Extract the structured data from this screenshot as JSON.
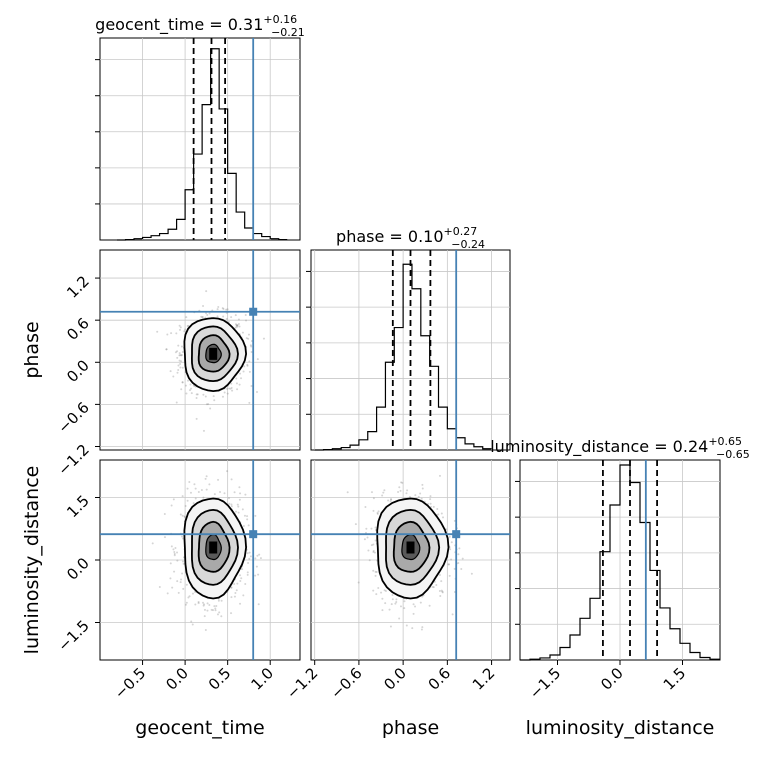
{
  "chart_data": {
    "type": "corner",
    "parameters": [
      "geocent_time",
      "phase",
      "luminosity_distance"
    ],
    "truth": {
      "color": "#4682b4",
      "values": [
        0.8,
        0.72,
        0.62
      ]
    },
    "panels": [
      {
        "kind": "hist",
        "param": "geocent_time",
        "xlim": [
          -1.0,
          1.35
        ],
        "title": {
          "main": "geocent_time = 0.31",
          "plus": "+0.16",
          "minus": "−0.21"
        },
        "edges": [
          -0.8,
          -0.7,
          -0.6,
          -0.5,
          -0.4,
          -0.3,
          -0.2,
          -0.1,
          0.0,
          0.1,
          0.2,
          0.3,
          0.4,
          0.5,
          0.6,
          0.7,
          0.8,
          0.9,
          1.0,
          1.1,
          1.2
        ],
        "counts": [
          0,
          1,
          3,
          6,
          10,
          15,
          25,
          48,
          117,
          200,
          315,
          445,
          305,
          155,
          65,
          28,
          15,
          8,
          3,
          1
        ],
        "ymax": 470,
        "quantiles": [
          0.1,
          0.31,
          0.47
        ],
        "truth": 0.8
      },
      {
        "kind": "hist",
        "param": "phase",
        "xlim": [
          -1.25,
          1.45
        ],
        "title": {
          "main": "phase = 0.10",
          "plus": "+0.27",
          "minus": "−0.24"
        },
        "edges": [
          -1.2,
          -1.08,
          -0.96,
          -0.84,
          -0.72,
          -0.6,
          -0.48,
          -0.36,
          -0.24,
          -0.12,
          0.0,
          0.12,
          0.24,
          0.36,
          0.48,
          0.6,
          0.72,
          0.84,
          0.96,
          1.08,
          1.2
        ],
        "counts": [
          0,
          1,
          3,
          6,
          12,
          25,
          45,
          105,
          215,
          300,
          455,
          395,
          280,
          205,
          105,
          52,
          30,
          15,
          8,
          3
        ],
        "ymax": 490,
        "quantiles": [
          -0.14,
          0.1,
          0.37
        ],
        "truth": 0.72
      },
      {
        "kind": "hist",
        "param": "luminosity_distance",
        "xlim": [
          -2.4,
          2.4
        ],
        "title": {
          "main": "luminosity_distance = 0.24",
          "plus": "+0.65",
          "minus": "−0.65"
        },
        "edges": [
          -2.4,
          -2.16,
          -1.92,
          -1.68,
          -1.44,
          -1.2,
          -0.96,
          -0.72,
          -0.48,
          -0.24,
          0.0,
          0.24,
          0.48,
          0.72,
          0.96,
          1.2,
          1.44,
          1.68,
          1.92,
          2.16,
          2.4
        ],
        "counts": [
          0,
          2,
          5,
          12,
          30,
          60,
          100,
          148,
          260,
          372,
          468,
          426,
          330,
          215,
          125,
          75,
          40,
          18,
          6,
          2
        ],
        "ymax": 480,
        "quantiles": [
          -0.41,
          0.24,
          0.89
        ],
        "truth": 0.62
      }
    ],
    "contours": [
      {
        "kind": "2d",
        "x": "geocent_time",
        "y": "phase",
        "xlim": [
          -1.0,
          1.35
        ],
        "ylim": [
          -1.25,
          1.6
        ],
        "center": [
          0.33,
          0.12
        ],
        "sigma": [
          0.18,
          0.26
        ],
        "truth": [
          0.8,
          0.72
        ]
      },
      {
        "kind": "2d",
        "x": "geocent_time",
        "y": "luminosity_distance",
        "xlim": [
          -1.0,
          1.35
        ],
        "ylim": [
          -2.4,
          2.4
        ],
        "center": [
          0.33,
          0.3
        ],
        "sigma": [
          0.18,
          0.6
        ],
        "truth": [
          0.8,
          0.62
        ]
      },
      {
        "kind": "2d",
        "x": "phase",
        "y": "luminosity_distance",
        "xlim": [
          -1.25,
          1.45
        ],
        "ylim": [
          -2.4,
          2.4
        ],
        "center": [
          0.1,
          0.3
        ],
        "sigma": [
          0.24,
          0.6
        ],
        "truth": [
          0.72,
          0.62
        ]
      }
    ],
    "axis_labels": {
      "x": [
        "geocent_time",
        "phase",
        "luminosity_distance"
      ],
      "y": [
        "phase",
        "luminosity_distance"
      ]
    },
    "ticks": {
      "geocent_time": {
        "values": [
          -0.5,
          0.0,
          0.5,
          1.0
        ],
        "labels": [
          "−0.5",
          "0.0",
          "0.5",
          "1.0"
        ]
      },
      "phase": {
        "values": [
          -1.2,
          -0.6,
          0.0,
          0.6,
          1.2
        ],
        "labels": [
          "−1.2",
          "−0.6",
          "0.0",
          "0.6",
          "1.2"
        ]
      },
      "luminosity_distance": {
        "values": [
          -1.5,
          0.0,
          1.5
        ],
        "labels": [
          "−1.5",
          "0.0",
          "1.5"
        ]
      }
    },
    "grid": true
  }
}
